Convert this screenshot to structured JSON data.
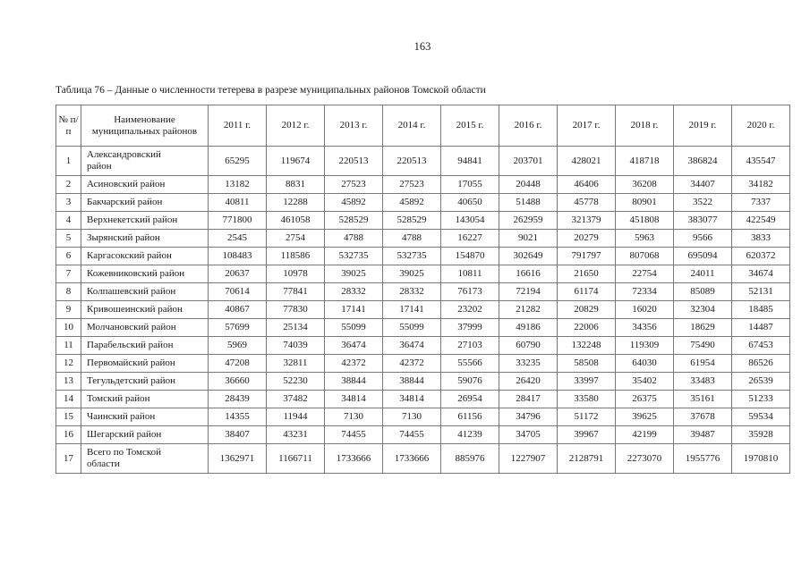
{
  "page": {
    "number": "163"
  },
  "colors": {
    "background": "#ffffff",
    "text": "#1a1a1a",
    "table_border": "#787878"
  },
  "table": {
    "caption": "Таблица 76 – Данные о численности тетерева в разрезе муниципальных районов Томской области",
    "headers": [
      "№ п/п",
      "Наименование муниципальных районов",
      "2011 г.",
      "2012 г.",
      "2013 г.",
      "2014 г.",
      "2015 г.",
      "2016 г.",
      "2017 г.",
      "2018 г.",
      "2019 г.",
      "2020 г."
    ],
    "rows": [
      {
        "num": "1",
        "name": "Александровский район",
        "values": [
          65295,
          119674,
          220513,
          220513,
          94841,
          203701,
          428021,
          418718,
          386824,
          435547
        ]
      },
      {
        "num": "2",
        "name": "Асиновский район",
        "values": [
          13182,
          8831,
          27523,
          27523,
          17055,
          20448,
          46406,
          36208,
          34407,
          34182
        ]
      },
      {
        "num": "3",
        "name": "Бакчарский район",
        "values": [
          40811,
          12288,
          45892,
          45892,
          40650,
          51488,
          45778,
          80901,
          3522,
          7337
        ]
      },
      {
        "num": "4",
        "name": "Верхнекетский район",
        "values": [
          771800,
          461058,
          528529,
          528529,
          143054,
          262959,
          321379,
          451808,
          383077,
          422549
        ]
      },
      {
        "num": "5",
        "name": "Зырянский район",
        "values": [
          2545,
          2754,
          4788,
          4788,
          16227,
          9021,
          20279,
          5963,
          9566,
          3833
        ]
      },
      {
        "num": "6",
        "name": "Каргасокский район",
        "values": [
          108483,
          118586,
          532735,
          532735,
          154870,
          302649,
          791797,
          807068,
          695094,
          620372
        ]
      },
      {
        "num": "7",
        "name": "Кожевниковский район",
        "values": [
          20637,
          10978,
          39025,
          39025,
          10811,
          16616,
          21650,
          22754,
          24011,
          34674
        ]
      },
      {
        "num": "8",
        "name": "Колпашевский район",
        "values": [
          70614,
          77841,
          28332,
          28332,
          76173,
          72194,
          61174,
          72334,
          85089,
          52131
        ]
      },
      {
        "num": "9",
        "name": "Кривошеинский район",
        "values": [
          40867,
          77830,
          17141,
          17141,
          23202,
          21282,
          20829,
          16020,
          32304,
          18485
        ]
      },
      {
        "num": "10",
        "name": "Молчановский район",
        "values": [
          57699,
          25134,
          55099,
          55099,
          37999,
          49186,
          22006,
          34356,
          18629,
          14487
        ]
      },
      {
        "num": "11",
        "name": "Парабельский район",
        "values": [
          5969,
          74039,
          36474,
          36474,
          27103,
          60790,
          132248,
          119309,
          75490,
          67453
        ]
      },
      {
        "num": "12",
        "name": "Первомайский район",
        "values": [
          47208,
          32811,
          42372,
          42372,
          55566,
          33235,
          58508,
          64030,
          61954,
          86526
        ]
      },
      {
        "num": "13",
        "name": "Тегульдетский район",
        "values": [
          36660,
          52230,
          38844,
          38844,
          59076,
          26420,
          33997,
          35402,
          33483,
          26539
        ]
      },
      {
        "num": "14",
        "name": "Томский район",
        "values": [
          28439,
          37482,
          34814,
          34814,
          26954,
          28417,
          33580,
          26375,
          35161,
          51233
        ]
      },
      {
        "num": "15",
        "name": "Чаинский район",
        "values": [
          14355,
          11944,
          7130,
          7130,
          61156,
          34796,
          51172,
          39625,
          37678,
          59534
        ]
      },
      {
        "num": "16",
        "name": "Шегарский район",
        "values": [
          38407,
          43231,
          74455,
          74455,
          41239,
          34705,
          39967,
          42199,
          39487,
          35928
        ]
      },
      {
        "num": "17",
        "name": "Всего по Томской области",
        "values": [
          1362971,
          1166711,
          1733666,
          1733666,
          885976,
          1227907,
          2128791,
          2273070,
          1955776,
          1970810
        ]
      }
    ]
  }
}
